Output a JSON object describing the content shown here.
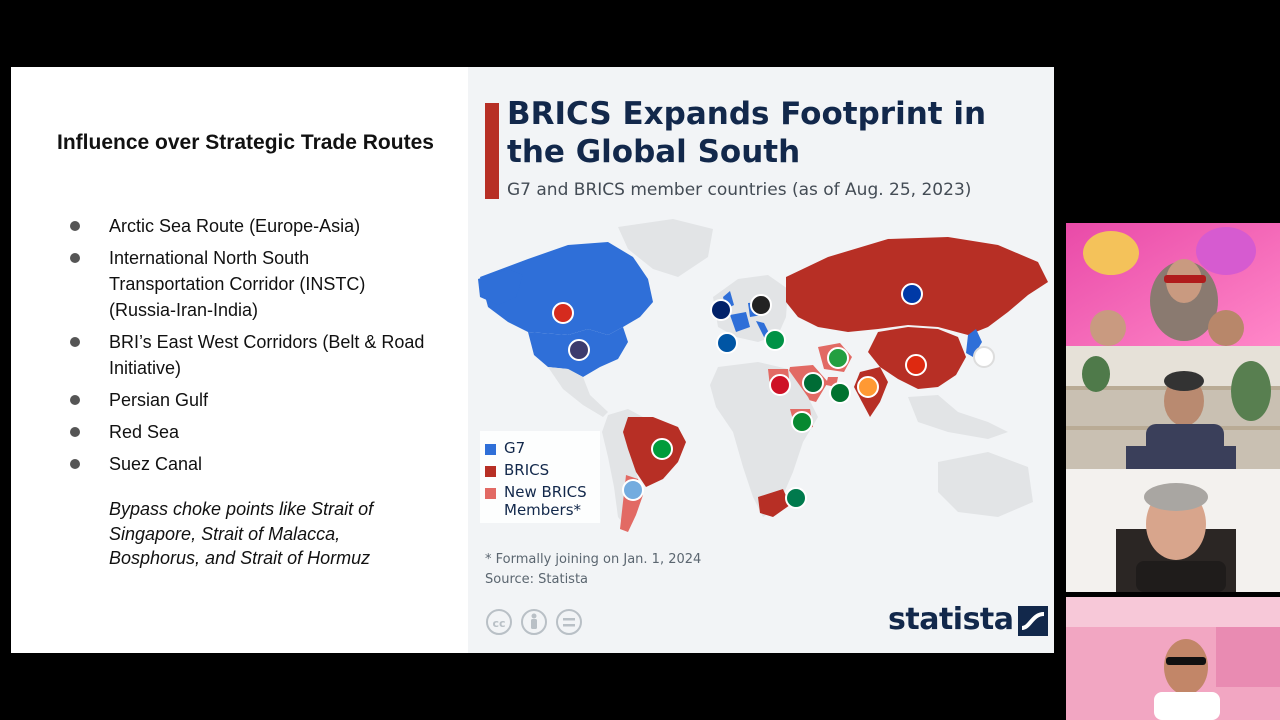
{
  "slide": {
    "title": "Influence over Strategic Trade Routes",
    "bullets": [
      "Arctic Sea Route (Europe-Asia)",
      "International North South Transportation Corridor (INSTC) (Russia-Iran-India)",
      "BRI’s East West Corridors (Belt & Road Initiative)",
      "Persian Gulf",
      "Red Sea",
      "Suez Canal"
    ],
    "note": "Bypass choke points like Strait of Singapore, Strait of Malacca, Bosphorus, and Strait of Hormuz"
  },
  "infographic": {
    "title": "BRICS Expands Footprint in the Global South",
    "subtitle": "G7 and BRICS member countries (as of Aug. 25, 2023)",
    "legend": [
      {
        "label": "G7",
        "color": "#2f6fd8"
      },
      {
        "label": "BRICS",
        "color": "#b72f25"
      },
      {
        "label": "New BRICS Members*",
        "color": "#e26a64"
      }
    ],
    "footnote": "* Formally joining on Jan. 1, 2024",
    "source": "Source: Statista",
    "brand": "statista",
    "colors": {
      "accent": "#b72f25",
      "g7": "#2f6fd8",
      "brics": "#b72f25",
      "new_brics": "#e26a64",
      "land": "#e2e4e6",
      "navy": "#12284b"
    },
    "icons": [
      "cc-icon",
      "by-icon",
      "nd-icon",
      "statista-logo-icon"
    ]
  },
  "participants": [
    "participant-video-1",
    "participant-video-2",
    "participant-video-3",
    "participant-video-4"
  ]
}
